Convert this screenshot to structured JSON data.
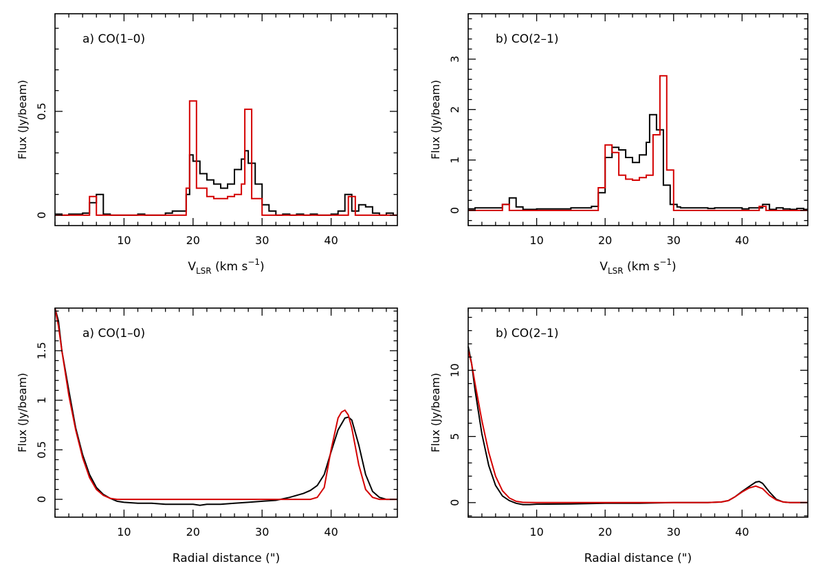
{
  "chart_data": [
    {
      "type": "line",
      "step": true,
      "panel_label": "a) CO(1–0)",
      "xlabel": {
        "main": "V",
        "sub": "LSR",
        "rest": " (km s",
        "sup": "−1",
        "end": ")"
      },
      "ylabel": "Flux (Jy/beam)",
      "xlim": [
        0,
        49.6
      ],
      "ylim": [
        -0.05,
        0.97
      ],
      "xticks": [
        10,
        20,
        30,
        40
      ],
      "yticks": [
        0,
        0.5
      ],
      "xtick_labels": [
        "10",
        "20",
        "30",
        "40"
      ],
      "ytick_labels": [
        "0",
        "0.5"
      ],
      "series": [
        {
          "color": "#000000",
          "x": [
            0,
            1,
            2,
            3,
            4,
            5,
            6,
            7,
            8,
            9,
            10,
            11,
            12,
            13,
            14,
            15,
            16,
            17,
            18,
            19,
            19.5,
            20,
            21,
            22,
            23,
            24,
            25,
            26,
            27,
            27.5,
            28,
            29,
            30,
            31,
            32,
            33,
            34,
            35,
            36,
            37,
            38,
            39,
            40,
            41,
            42,
            43,
            44,
            45,
            46,
            47,
            48,
            49
          ],
          "y": [
            0.005,
            0.0,
            0.005,
            0.005,
            0.01,
            0.06,
            0.1,
            0.005,
            0.0,
            0.0,
            0.0,
            0.0,
            0.005,
            0.0,
            0.0,
            0.0,
            0.01,
            0.02,
            0.02,
            0.1,
            0.29,
            0.26,
            0.2,
            0.17,
            0.15,
            0.13,
            0.15,
            0.22,
            0.27,
            0.31,
            0.25,
            0.15,
            0.05,
            0.02,
            0.0,
            0.005,
            0.0,
            0.005,
            0.0,
            0.005,
            0.0,
            0.0,
            0.005,
            0.02,
            0.1,
            0.02,
            0.05,
            0.04,
            0.01,
            0.0,
            0.01,
            0.0
          ]
        },
        {
          "color": "#d40000",
          "x": [
            0,
            2,
            4,
            5,
            6,
            7,
            9,
            11,
            13,
            15,
            17,
            19,
            19.5,
            20.5,
            22,
            23,
            25,
            26,
            27,
            27.5,
            28.5,
            30,
            32,
            35,
            38,
            41,
            42.5,
            43.5,
            46,
            48,
            49.6
          ],
          "y": [
            0.0,
            0.0,
            0.0,
            0.09,
            0.0,
            0.0,
            0.0,
            0.0,
            0.0,
            0.0,
            0.0,
            0.13,
            0.55,
            0.13,
            0.09,
            0.08,
            0.09,
            0.1,
            0.15,
            0.51,
            0.08,
            0.0,
            0.0,
            0.0,
            0.0,
            0.0,
            0.09,
            0.0,
            0.0,
            0.0,
            0.0
          ]
        }
      ]
    },
    {
      "type": "line",
      "step": true,
      "panel_label": "b) CO(2–1)",
      "xlabel": {
        "main": "V",
        "sub": "LSR",
        "rest": " (km s",
        "sup": "−1",
        "end": ")"
      },
      "ylabel": "Flux (Jy/beam)",
      "xlim": [
        0,
        49.6
      ],
      "ylim": [
        -0.3,
        3.9
      ],
      "xticks": [
        10,
        20,
        30,
        40
      ],
      "yticks": [
        0,
        1,
        2,
        3
      ],
      "xtick_labels": [
        "10",
        "20",
        "30",
        "40"
      ],
      "ytick_labels": [
        "0",
        "1",
        "2",
        "3"
      ],
      "series": [
        {
          "color": "#000000",
          "x": [
            0,
            1,
            2,
            3,
            4,
            5,
            6,
            7,
            8,
            9,
            10,
            11,
            12,
            13,
            14,
            15,
            16,
            17,
            18,
            19,
            20,
            21,
            22,
            23,
            24,
            25,
            26,
            26.5,
            27.5,
            28.5,
            29.5,
            30.5,
            31,
            32,
            33,
            34,
            35,
            36,
            37,
            38,
            39,
            40,
            41,
            42,
            43,
            44,
            45,
            46,
            47,
            48,
            49
          ],
          "y": [
            0.03,
            0.05,
            0.05,
            0.05,
            0.05,
            0.12,
            0.25,
            0.07,
            0.02,
            0.02,
            0.03,
            0.03,
            0.03,
            0.03,
            0.03,
            0.05,
            0.05,
            0.05,
            0.08,
            0.35,
            1.05,
            1.25,
            1.2,
            1.05,
            0.95,
            1.1,
            1.35,
            1.9,
            1.6,
            0.5,
            0.12,
            0.07,
            0.05,
            0.05,
            0.05,
            0.05,
            0.04,
            0.05,
            0.05,
            0.05,
            0.05,
            0.03,
            0.05,
            0.05,
            0.12,
            0.02,
            0.05,
            0.03,
            0.02,
            0.04,
            0.02
          ]
        },
        {
          "color": "#d40000",
          "x": [
            0,
            3,
            5,
            6,
            7,
            10,
            15,
            18,
            19,
            20,
            21,
            22,
            23,
            24,
            25,
            26,
            27,
            28,
            29,
            30,
            35,
            40,
            42.5,
            43.5,
            49.6
          ],
          "y": [
            0.0,
            0.0,
            0.12,
            0.0,
            0.0,
            0.0,
            0.0,
            0.0,
            0.45,
            1.3,
            1.15,
            0.7,
            0.62,
            0.6,
            0.65,
            0.7,
            1.5,
            2.67,
            0.8,
            0.0,
            0.0,
            0.0,
            0.08,
            0.0,
            0.0
          ]
        }
      ]
    },
    {
      "type": "line",
      "step": false,
      "panel_label": "a) CO(1–0)",
      "xlabel": {
        "main": "Radial distance (\")"
      },
      "ylabel": "Flux (Jy/beam)",
      "xlim": [
        0,
        49.6
      ],
      "ylim": [
        -0.18,
        1.93
      ],
      "xticks": [
        10,
        20,
        30,
        40
      ],
      "yticks": [
        0,
        0.5,
        1,
        1.5
      ],
      "xtick_labels": [
        "10",
        "20",
        "30",
        "40"
      ],
      "ytick_labels": [
        "0",
        "0.5",
        "1",
        "1.5"
      ],
      "series": [
        {
          "color": "#000000",
          "x": [
            0,
            0.5,
            1,
            2,
            3,
            4,
            5,
            6,
            7,
            8,
            9,
            10,
            12,
            14,
            16,
            18,
            20,
            21,
            22,
            24,
            26,
            28,
            30,
            32,
            34,
            35,
            36,
            37,
            38,
            39,
            40,
            41,
            42,
            42.5,
            43,
            44,
            45,
            46,
            47,
            48,
            49,
            49.6
          ],
          "y": [
            1.93,
            1.8,
            1.5,
            1.1,
            0.72,
            0.45,
            0.25,
            0.12,
            0.05,
            0.01,
            -0.02,
            -0.03,
            -0.04,
            -0.04,
            -0.05,
            -0.05,
            -0.05,
            -0.06,
            -0.05,
            -0.05,
            -0.04,
            -0.03,
            -0.02,
            -0.01,
            0.02,
            0.04,
            0.06,
            0.09,
            0.14,
            0.25,
            0.48,
            0.7,
            0.82,
            0.83,
            0.8,
            0.55,
            0.25,
            0.08,
            0.02,
            0.0,
            0.0,
            0.0
          ]
        },
        {
          "color": "#d40000",
          "x": [
            0,
            0.5,
            1,
            2,
            3,
            4,
            5,
            6,
            7,
            8,
            9,
            10,
            15,
            20,
            25,
            30,
            35,
            37,
            38,
            39,
            40,
            41,
            41.5,
            42,
            42.5,
            43,
            44,
            45,
            46,
            47,
            48,
            49,
            49.6
          ],
          "y": [
            1.93,
            1.75,
            1.5,
            1.05,
            0.7,
            0.42,
            0.22,
            0.1,
            0.04,
            0.01,
            0.0,
            0.0,
            0.0,
            0.0,
            0.0,
            0.0,
            0.0,
            0.0,
            0.02,
            0.12,
            0.5,
            0.82,
            0.88,
            0.9,
            0.85,
            0.72,
            0.35,
            0.1,
            0.02,
            0.0,
            0.0,
            0.0,
            0.0
          ]
        }
      ]
    },
    {
      "type": "line",
      "step": false,
      "panel_label": "b) CO(2–1)",
      "xlabel": {
        "main": "Radial distance (\")"
      },
      "ylabel": "Flux (Jy/beam)",
      "xlim": [
        0,
        49.6
      ],
      "ylim": [
        -1.1,
        14.7
      ],
      "xticks": [
        10,
        20,
        30,
        40
      ],
      "yticks": [
        0,
        5,
        10
      ],
      "xtick_labels": [
        "10",
        "20",
        "30",
        "40"
      ],
      "ytick_labels": [
        "0",
        "5",
        "10"
      ],
      "series": [
        {
          "color": "#000000",
          "x": [
            0,
            0.5,
            1,
            2,
            3,
            4,
            5,
            6,
            7,
            8,
            9,
            10,
            15,
            20,
            25,
            30,
            35,
            37,
            38,
            39,
            40,
            41,
            42,
            42.5,
            43,
            44,
            45,
            46,
            47,
            48,
            49.6
          ],
          "y": [
            11.8,
            10.5,
            8.5,
            5.2,
            2.8,
            1.3,
            0.5,
            0.15,
            -0.05,
            -0.15,
            -0.15,
            -0.12,
            -0.1,
            -0.05,
            -0.05,
            0.0,
            0.0,
            0.05,
            0.15,
            0.45,
            0.85,
            1.2,
            1.55,
            1.6,
            1.45,
            0.8,
            0.25,
            0.05,
            0.0,
            0.0,
            0.0
          ]
        },
        {
          "color": "#d40000",
          "x": [
            0,
            0.5,
            1,
            2,
            3,
            4,
            5,
            6,
            7,
            8,
            10,
            15,
            20,
            25,
            30,
            35,
            37,
            38,
            39,
            40,
            41,
            42,
            43,
            44,
            45,
            46,
            47,
            48,
            49.6
          ],
          "y": [
            11.5,
            10.5,
            9.0,
            6.2,
            3.8,
            2.0,
            0.9,
            0.35,
            0.1,
            0.02,
            0.0,
            0.0,
            0.0,
            0.0,
            0.0,
            0.0,
            0.05,
            0.15,
            0.45,
            0.8,
            1.1,
            1.25,
            1.05,
            0.55,
            0.2,
            0.05,
            0.0,
            0.0,
            0.0
          ]
        }
      ]
    }
  ]
}
